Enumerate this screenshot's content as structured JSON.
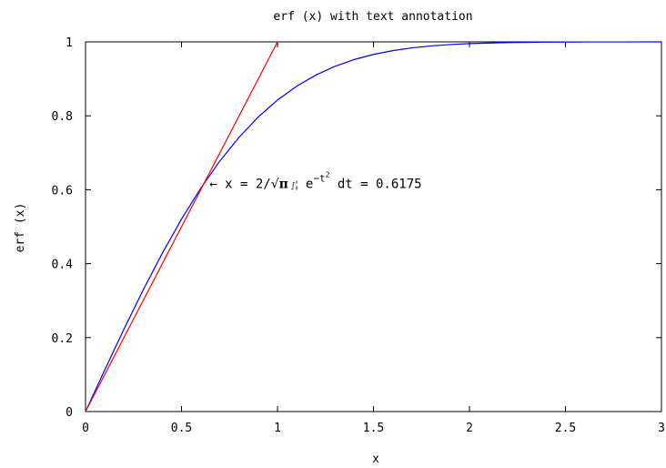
{
  "chart_data": {
    "type": "line",
    "title": "erf (x) with text annotation",
    "xlabel": "x",
    "ylabel": "erf (x)",
    "xlim": [
      0,
      3
    ],
    "ylim": [
      0,
      1
    ],
    "x_ticks": [
      "0",
      "0.5",
      "1",
      "1.5",
      "2",
      "2.5",
      "3"
    ],
    "y_ticks": [
      "0",
      "0.2",
      "0.4",
      "0.6",
      "0.8",
      "1"
    ],
    "grid": false,
    "series": [
      {
        "color": "#0000ff",
        "x": [
          0,
          0.1,
          0.2,
          0.3,
          0.4,
          0.5,
          0.6,
          0.7,
          0.8,
          0.9,
          1.0,
          1.1,
          1.2,
          1.3,
          1.4,
          1.5,
          1.6,
          1.7,
          1.8,
          1.9,
          2.0,
          2.2,
          2.4,
          2.6,
          2.8,
          3.0
        ],
        "y": [
          0,
          0.1125,
          0.2227,
          0.3286,
          0.4284,
          0.5205,
          0.6039,
          0.6778,
          0.7421,
          0.7969,
          0.8427,
          0.8802,
          0.9103,
          0.934,
          0.9523,
          0.9661,
          0.9763,
          0.9838,
          0.9891,
          0.9928,
          0.9953,
          0.9981,
          0.9993,
          0.9998,
          0.9999,
          1.0
        ]
      },
      {
        "color": "#ff0000",
        "x": [
          0,
          1.0
        ],
        "y": [
          0,
          1.0
        ]
      }
    ],
    "annotation": {
      "arrow": "←",
      "text_before_sqrt": "x = 2/",
      "sqrt": "√",
      "pi": "π",
      "integral": "∫",
      "int_upper": "x",
      "int_lower": "0",
      "e": "e",
      "exponent": "−t",
      "exponent_power": "2",
      "text_after": "dt = 0.6175",
      "point": [
        0.6175,
        0.6175
      ]
    }
  }
}
